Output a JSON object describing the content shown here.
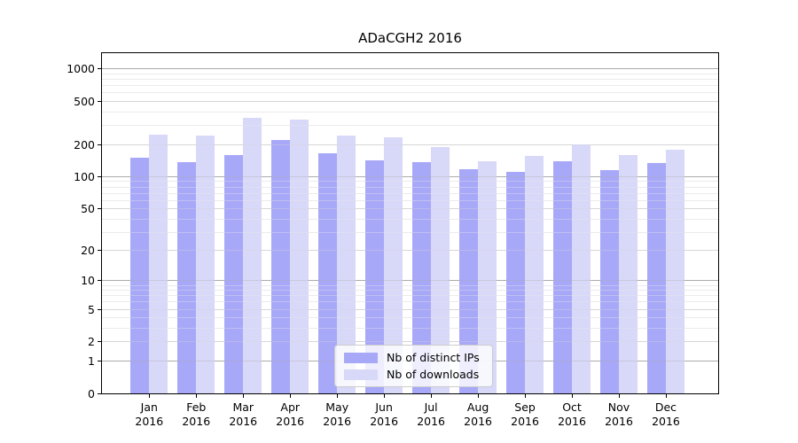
{
  "chart_data": {
    "type": "bar",
    "title": "ADaCGH2 2016",
    "categories": [
      "Jan",
      "Feb",
      "Mar",
      "Apr",
      "May",
      "Jun",
      "Jul",
      "Aug",
      "Sep",
      "Oct",
      "Nov",
      "Dec"
    ],
    "category_year": "2016",
    "series": [
      {
        "name": "Nb of distinct IPs",
        "color": "#a8a8f8",
        "values": [
          150,
          137,
          160,
          219,
          165,
          142,
          137,
          117,
          110,
          139,
          115,
          134
        ]
      },
      {
        "name": "Nb of downloads",
        "color": "#d8d8f8",
        "values": [
          248,
          240,
          350,
          340,
          242,
          234,
          188,
          140,
          155,
          199,
          158,
          178
        ]
      }
    ],
    "yscale": "log1p",
    "ylim": [
      0,
      1400
    ],
    "yticks": [
      0,
      1,
      2,
      5,
      10,
      20,
      50,
      100,
      200,
      500,
      1000
    ],
    "major_ticks": [
      1,
      10,
      100,
      1000
    ],
    "minor_gridlines": [
      3,
      4,
      6,
      7,
      8,
      9,
      30,
      40,
      60,
      70,
      80,
      90,
      300,
      400,
      600,
      700,
      800,
      900
    ],
    "grid": true,
    "legend_position": "lower center",
    "colors": {
      "major_grid": "#ababab",
      "labeled_grid": "#d6d6d6",
      "minor_grid": "#ebebeb",
      "axis": "#000000"
    }
  }
}
